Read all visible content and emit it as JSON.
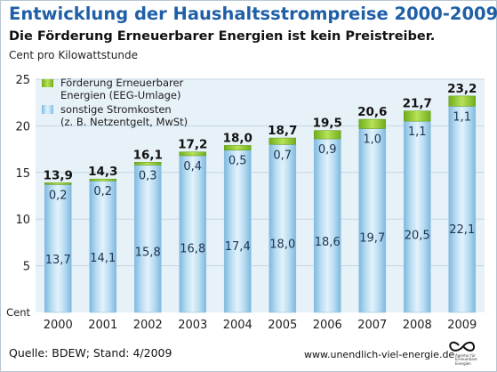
{
  "title": "Entwicklung der Haushaltsstrompreise 2000-2009",
  "subtitle": "Die Förderung Erneuerbarer Energien ist kein Preistreiber.",
  "unit": "Cent pro Kilowattstunde",
  "source": "Quelle: BDEW; Stand: 4/2009",
  "website": "www.unendlich-viel-energie.de",
  "logo_lines": [
    "Agentur für",
    "Erneuerbare",
    "Energien"
  ],
  "colors": {
    "eeg": "#9bd031",
    "other": "#a9d4ee",
    "plot_bg": "#e7f1f8",
    "title": "#1f5fa6"
  },
  "chart_data": {
    "type": "bar",
    "stacked": true,
    "categories": [
      "2000",
      "2001",
      "2002",
      "2003",
      "2004",
      "2005",
      "2006",
      "2007",
      "2008",
      "2009"
    ],
    "series": [
      {
        "name": "sonstige Stromkosten (z. B. Netzentgelt, MwSt)",
        "legend_lines": [
          "sonstige Stromkosten",
          "(z. B. Netzentgelt, MwSt)"
        ],
        "values": [
          13.7,
          14.1,
          15.8,
          16.8,
          17.4,
          18.0,
          18.6,
          19.7,
          20.5,
          22.1
        ],
        "labels": [
          "13,7",
          "14,1",
          "15,8",
          "16,8",
          "17,4",
          "18,0",
          "18,6",
          "19,7",
          "20,5",
          "22,1"
        ]
      },
      {
        "name": "Förderung Erneuerbarer Energien (EEG-Umlage)",
        "legend_lines": [
          "Förderung Erneuerbarer",
          "Energien (EEG-Umlage)"
        ],
        "values": [
          0.2,
          0.2,
          0.3,
          0.4,
          0.5,
          0.7,
          0.9,
          1.0,
          1.1,
          1.1
        ],
        "labels": [
          "0,2",
          "0,2",
          "0,3",
          "0,4",
          "0,5",
          "0,7",
          "0,9",
          "1,0",
          "1,1",
          "1,1"
        ]
      }
    ],
    "totals": [
      13.9,
      14.3,
      16.1,
      17.2,
      18.0,
      18.7,
      19.5,
      20.6,
      21.7,
      23.2
    ],
    "total_labels": [
      "13,9",
      "14,3",
      "16,1",
      "17,2",
      "18,0",
      "18,7",
      "19,5",
      "20,6",
      "21,7",
      "23,2"
    ],
    "ylabel": "Cent",
    "ylim": [
      0,
      25
    ],
    "yticks": [
      0,
      5,
      10,
      15,
      20,
      25
    ],
    "ytick_labels": [
      "Cent",
      "5",
      "10",
      "15",
      "20",
      "25"
    ],
    "grid": true,
    "legend": "top-left"
  }
}
